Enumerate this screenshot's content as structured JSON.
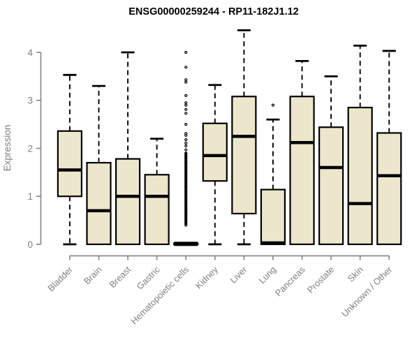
{
  "title": "ENSG00000259244 - RP11-182J1.12",
  "colors": {
    "background": "#ffffff",
    "box_fill": "#ece7cc",
    "box_border": "#000000",
    "median": "#000000",
    "whisker": "#000000",
    "outlier": "#000000",
    "axis": "#8a8a8a",
    "text_gray": "#7f7f7f",
    "title_color": "#000000"
  },
  "chart_data": {
    "type": "boxplot",
    "title": "ENSG00000259244 - RP11-182J1.12",
    "xlabel": "",
    "ylabel": "Expression",
    "ylim": [
      0,
      4.5
    ],
    "yticks": [
      0,
      1,
      2,
      3,
      4
    ],
    "grid": false,
    "legend": "none",
    "categories": [
      "Bladder",
      "Brain",
      "Breast",
      "Gastric",
      "Hematopoietic cells",
      "Kidney",
      "Liver",
      "Lung",
      "Pancreas",
      "Prostate",
      "Skin",
      "Unknown / Other"
    ],
    "series": [
      {
        "name": "Bladder",
        "min": 0,
        "q1": 1.0,
        "median": 1.55,
        "q3": 2.36,
        "max": 3.53,
        "outliers": []
      },
      {
        "name": "Brain",
        "min": 0,
        "q1": 0.0,
        "median": 0.7,
        "q3": 1.7,
        "max": 3.3,
        "outliers": []
      },
      {
        "name": "Breast",
        "min": 0,
        "q1": 0.0,
        "median": 1.0,
        "q3": 1.78,
        "max": 4.0,
        "outliers": []
      },
      {
        "name": "Gastric",
        "min": 0,
        "q1": 0.0,
        "median": 1.0,
        "q3": 1.45,
        "max": 2.2,
        "outliers": []
      },
      {
        "name": "Hematopoietic cells",
        "min": 0,
        "q1": 0.0,
        "median": 0.01,
        "q3": 0.02,
        "max": 0.02,
        "outliers": [
          0.4,
          0.43,
          0.45,
          0.48,
          0.5,
          0.53,
          0.55,
          0.58,
          0.6,
          0.63,
          0.65,
          0.68,
          0.7,
          0.73,
          0.75,
          0.78,
          0.8,
          0.83,
          0.85,
          0.88,
          0.9,
          0.93,
          0.95,
          0.98,
          1.0,
          1.03,
          1.05,
          1.08,
          1.1,
          1.13,
          1.15,
          1.18,
          1.2,
          1.23,
          1.25,
          1.28,
          1.3,
          1.33,
          1.35,
          1.38,
          1.4,
          1.43,
          1.45,
          1.48,
          1.5,
          1.53,
          1.55,
          1.58,
          1.6,
          1.63,
          1.65,
          1.68,
          1.7,
          1.73,
          1.75,
          1.78,
          1.8,
          1.83,
          1.85,
          1.88,
          1.9,
          1.97,
          2.05,
          2.11,
          2.18,
          2.27,
          2.31,
          2.5,
          2.73,
          2.81,
          2.9,
          2.95,
          3.1,
          3.38,
          3.43,
          3.69,
          4.0
        ]
      },
      {
        "name": "Kidney",
        "min": 0,
        "q1": 1.32,
        "median": 1.85,
        "q3": 2.52,
        "max": 3.32,
        "outliers": []
      },
      {
        "name": "Liver",
        "min": 0,
        "q1": 0.64,
        "median": 2.25,
        "q3": 3.08,
        "max": 4.46,
        "outliers": []
      },
      {
        "name": "Lung",
        "min": 0,
        "q1": 0.0,
        "median": 0.03,
        "q3": 1.14,
        "max": 2.6,
        "outliers": [
          2.9
        ]
      },
      {
        "name": "Pancreas",
        "min": 0,
        "q1": 0.0,
        "median": 2.12,
        "q3": 3.08,
        "max": 3.82,
        "outliers": []
      },
      {
        "name": "Prostate",
        "min": 0,
        "q1": 0.0,
        "median": 1.6,
        "q3": 2.44,
        "max": 3.5,
        "outliers": []
      },
      {
        "name": "Skin",
        "min": 0,
        "q1": 0.0,
        "median": 0.85,
        "q3": 2.85,
        "max": 4.14,
        "outliers": []
      },
      {
        "name": "Unknown / Other",
        "min": 0,
        "q1": 0.0,
        "median": 1.43,
        "q3": 2.32,
        "max": 4.03,
        "outliers": []
      }
    ]
  }
}
